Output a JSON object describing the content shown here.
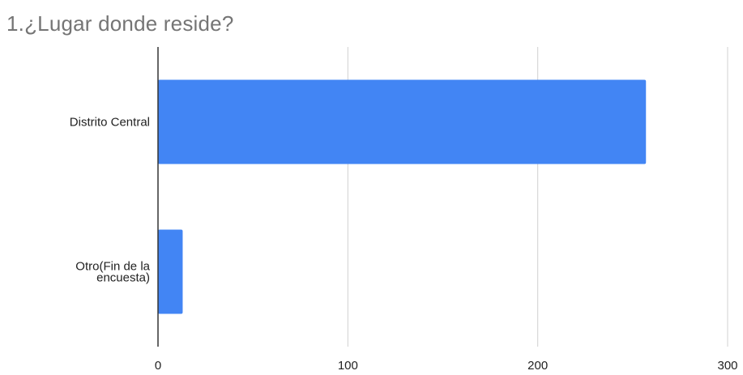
{
  "chart_data": {
    "type": "bar",
    "orientation": "horizontal",
    "title": "1.¿Lugar donde reside?",
    "categories": [
      [
        "Distrito Central"
      ],
      [
        "Otro(Fin de la",
        "encuesta)"
      ]
    ],
    "values": [
      257,
      13
    ],
    "xlim": [
      0,
      300
    ],
    "xticks": [
      0,
      100,
      200,
      300
    ],
    "xlabel": "",
    "ylabel": "",
    "grid": "vertical",
    "legend": "none",
    "colors": {
      "bar": "#4285f4",
      "grid": "#d0d0d0",
      "axis": "#333333",
      "title": "#757575"
    }
  }
}
